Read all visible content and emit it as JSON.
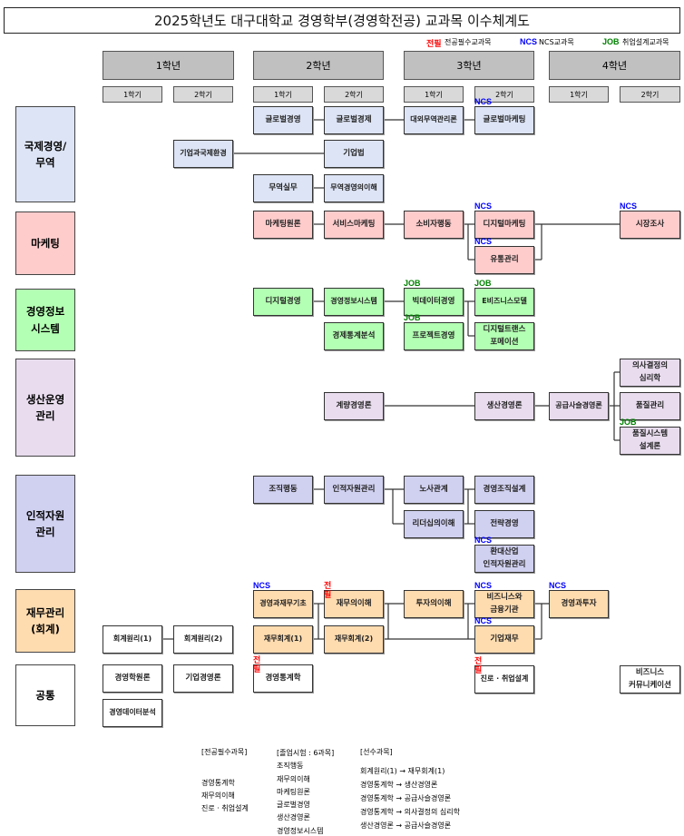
{
  "title": "2025학년도 대구대학교 경영학부(경영학전공) 교과목 이수체계도",
  "legend": [
    {
      "tag": "전필",
      "label": "전공필수교과목",
      "color": "#ff0000"
    },
    {
      "tag": "NCS",
      "label": "NCS교과목",
      "color": "#0000ff"
    },
    {
      "tag": "JOB",
      "label": "취업설계교과목",
      "color": "#008000"
    }
  ],
  "years": [
    "1학년",
    "2학년",
    "3학년",
    "4학년"
  ],
  "semesters": [
    "1학기",
    "2학기",
    "1학기",
    "2학기",
    "1학기",
    "2학기",
    "1학기",
    "2학기"
  ],
  "categories": [
    {
      "name": "국제경영/\n무역",
      "color": "#dde4f5"
    },
    {
      "name": "마케팅",
      "color": "#ffcccc"
    },
    {
      "name": "경영정보\n시스템",
      "color": "#b3ffb3"
    },
    {
      "name": "생산운영\n관리",
      "color": "#e8dcee"
    },
    {
      "name": "인적자원\n관리",
      "color": "#d0d0f0"
    },
    {
      "name": "재무관리\n(회계)",
      "color": "#ffdcb0"
    },
    {
      "name": "공통",
      "color": "#ffffff"
    }
  ],
  "courses": [
    {
      "name": "글로벌경영",
      "cat": 0,
      "year": "2학년",
      "semester": "1학기"
    },
    {
      "name": "글로벌경제",
      "cat": 0,
      "year": "2학년",
      "semester": "2학기"
    },
    {
      "name": "대외무역관리론",
      "cat": 0,
      "year": "3학년",
      "semester": "1학기"
    },
    {
      "name": "글로벌마케팅",
      "cat": 0,
      "year": "3학년",
      "semester": "2학기",
      "badge": "NCS"
    },
    {
      "name": "기업과국제환경",
      "cat": 0,
      "year": "1학년",
      "semester": "2학기"
    },
    {
      "name": "기업법",
      "cat": 0,
      "year": "2학년",
      "semester": "2학기"
    },
    {
      "name": "무역실무",
      "cat": 0,
      "year": "2학년",
      "semester": "1학기"
    },
    {
      "name": "무역경영의이해",
      "cat": 0,
      "year": "2학년",
      "semester": "2학기"
    },
    {
      "name": "마케팅원론",
      "cat": 1,
      "year": "2학년",
      "semester": "1학기"
    },
    {
      "name": "서비스마케팅",
      "cat": 1,
      "year": "2학년",
      "semester": "2학기"
    },
    {
      "name": "소비자행동",
      "cat": 1,
      "year": "3학년",
      "semester": "1학기"
    },
    {
      "name": "디지털마케팅",
      "cat": 1,
      "year": "3학년",
      "semester": "2학기",
      "badge": "NCS"
    },
    {
      "name": "유통관리",
      "cat": 1,
      "year": "3학년",
      "semester": "2학기",
      "badge": "NCS"
    },
    {
      "name": "시장조사",
      "cat": 1,
      "year": "4학년",
      "semester": "2학기",
      "badge": "NCS"
    },
    {
      "name": "디지털경영",
      "cat": 2,
      "year": "2학년",
      "semester": "1학기"
    },
    {
      "name": "경영정보시스템",
      "cat": 2,
      "year": "2학년",
      "semester": "2학기"
    },
    {
      "name": "빅데이터경영",
      "cat": 2,
      "year": "3학년",
      "semester": "1학기",
      "badge": "JOB"
    },
    {
      "name": "E비즈니스모델",
      "cat": 2,
      "year": "3학년",
      "semester": "2학기",
      "badge": "JOB"
    },
    {
      "name": "경제통계분석",
      "cat": 2,
      "year": "2학년",
      "semester": "2학기"
    },
    {
      "name": "프로젝트경영",
      "cat": 2,
      "year": "3학년",
      "semester": "1학기",
      "badge": "JOB"
    },
    {
      "name": "디지털트랜스\n포메이션",
      "cat": 2,
      "year": "3학년",
      "semester": "2학기"
    },
    {
      "name": "계량경영론",
      "cat": 3,
      "year": "2학년",
      "semester": "2학기"
    },
    {
      "name": "생산경영론",
      "cat": 3,
      "year": "3학년",
      "semester": "2학기"
    },
    {
      "name": "공급사슬경영론",
      "cat": 3,
      "year": "4학년",
      "semester": "1학기"
    },
    {
      "name": "의사결정의\n심리학",
      "cat": 3,
      "year": "4학년",
      "semester": "2학기"
    },
    {
      "name": "품질관리",
      "cat": 3,
      "year": "4학년",
      "semester": "2학기"
    },
    {
      "name": "품질시스템\n설계론",
      "cat": 3,
      "year": "4학년",
      "semester": "2학기",
      "badge": "JOB"
    },
    {
      "name": "조직행동",
      "cat": 4,
      "year": "2학년",
      "semester": "1학기"
    },
    {
      "name": "인적자원관리",
      "cat": 4,
      "year": "2학년",
      "semester": "2학기"
    },
    {
      "name": "노사관계",
      "cat": 4,
      "year": "3학년",
      "semester": "1학기"
    },
    {
      "name": "경영조직설계",
      "cat": 4,
      "year": "3학년",
      "semester": "2학기"
    },
    {
      "name": "리더십의이해",
      "cat": 4,
      "year": "3학년",
      "semester": "1학기"
    },
    {
      "name": "전략경영",
      "cat": 4,
      "year": "3학년",
      "semester": "2학기"
    },
    {
      "name": "환대산업\n인적자원관리",
      "cat": 4,
      "year": "3학년",
      "semester": "2학기",
      "badge": "NCS"
    },
    {
      "name": "경영과재무기초",
      "cat": 5,
      "year": "2학년",
      "semester": "1학기",
      "badge": "NCS"
    },
    {
      "name": "재무의이해",
      "cat": 5,
      "year": "2학년",
      "semester": "2학기",
      "badge": "전필"
    },
    {
      "name": "투자의이해",
      "cat": 5,
      "year": "3학년",
      "semester": "1학기"
    },
    {
      "name": "비즈니스와\n금융기관",
      "cat": 5,
      "year": "3학년",
      "semester": "2학기",
      "badge": "NCS"
    },
    {
      "name": "경영과투자",
      "cat": 5,
      "year": "4학년",
      "semester": "1학기",
      "badge": "NCS"
    },
    {
      "name": "재무회계(1)",
      "cat": 5,
      "year": "2학년",
      "semester": "1학기"
    },
    {
      "name": "재무회계(2)",
      "cat": 5,
      "year": "2학년",
      "semester": "2학기"
    },
    {
      "name": "기업재무",
      "cat": 5,
      "year": "3학년",
      "semester": "2학기",
      "badge": "NCS"
    },
    {
      "name": "회계원리(1)",
      "cat": 6,
      "year": "1학년",
      "semester": "1학기"
    },
    {
      "name": "회계원리(2)",
      "cat": 6,
      "year": "1학년",
      "semester": "2학기"
    },
    {
      "name": "경영학원론",
      "cat": 6,
      "year": "1학년",
      "semester": "1학기"
    },
    {
      "name": "기업경영론",
      "cat": 6,
      "year": "1학년",
      "semester": "2학기"
    },
    {
      "name": "경영통계학",
      "cat": 6,
      "year": "2학년",
      "semester": "1학기",
      "badge": "전필"
    },
    {
      "name": "진로 · 취업설계",
      "cat": 6,
      "year": "3학년",
      "semester": "2학기",
      "badge": "전필"
    },
    {
      "name": "비즈니스\n커뮤니케이션",
      "cat": 6,
      "year": "4학년",
      "semester": "2학기"
    },
    {
      "name": "경영데이터분석",
      "cat": 6,
      "year": "1학년",
      "semester": "1학기"
    }
  ],
  "footer": {
    "required": {
      "title": "[전공필수과목]",
      "items": [
        "경영통계학",
        "재무의이해",
        "진로 · 취업설계"
      ]
    },
    "exam": {
      "title": "[졸업시험 : 6과목]",
      "items": [
        "조직행동",
        "재무의이해",
        "마케팅원론",
        "글로벌경영",
        "생산경영론",
        "경영정보시스템"
      ]
    },
    "prereq": {
      "title": "[선수과목]",
      "items": [
        "회계원리(1) → 재무회계(1)",
        "경영통계학 → 생산경영론",
        "경영통계학 → 공급사슬경영론",
        "경영통계학 → 의사결정의 심리학",
        "생산경영론 → 공급사슬경영론"
      ]
    }
  }
}
